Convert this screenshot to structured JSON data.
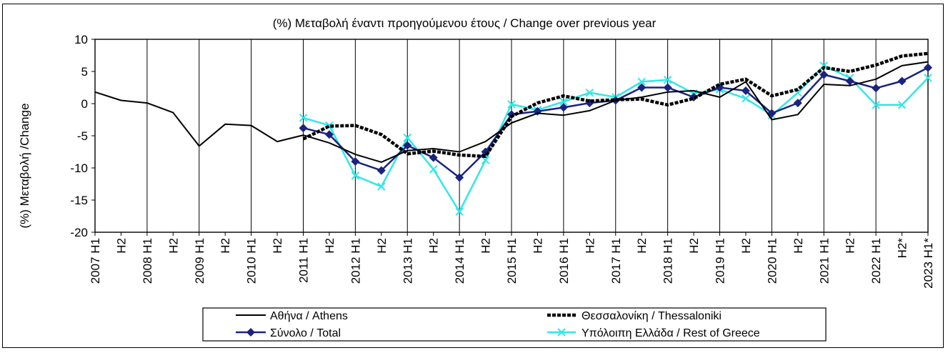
{
  "chart_data": {
    "type": "line",
    "title": "(%) Μεταβολή έναντι προηγούμενου έτους / Change over previous year",
    "xlabel": "",
    "ylabel": "(%) Μεταβολή /Change",
    "ylim": [
      -20,
      10
    ],
    "yticks": [
      10,
      5,
      0,
      -5,
      -10,
      -15,
      -20
    ],
    "grid": "vertical",
    "legend_position": "bottom",
    "categories": [
      "2007 H1",
      "H2",
      "2008 H1",
      "H2",
      "2009 H1",
      "H2",
      "2010 H1",
      "H2",
      "2011 H1",
      "H2",
      "2012 H1",
      "H2",
      "2013 H1",
      "H2",
      "2014 H1",
      "H2",
      "2015 H1",
      "H2",
      "2016 H1",
      "H2",
      "2017 H1",
      "H2",
      "2018 H1",
      "H2",
      "2019 H1",
      "H2",
      "2020 H1",
      "H2",
      "2021 H1",
      "H2",
      "2022 H1",
      "H2*",
      "2023 H1*"
    ],
    "series": [
      {
        "name": "Αθήνα / Athens",
        "color": "#000000",
        "style": "solid",
        "values": [
          1.8,
          0.5,
          0.1,
          -1.4,
          -6.6,
          -3.2,
          -3.4,
          -5.9,
          -4.9,
          -6.1,
          -7.9,
          -9.1,
          -7.3,
          -7.0,
          -7.5,
          -5.9,
          -3.0,
          -1.5,
          -1.8,
          -1.1,
          0.5,
          1.0,
          1.8,
          2.0,
          1.0,
          3.4,
          -2.5,
          -1.7,
          3.0,
          2.8,
          3.8,
          5.9,
          6.5
        ]
      },
      {
        "name": "Θεσσαλονίκη / Thessaloniki",
        "color": "#000000",
        "style": "dashed",
        "values": [
          null,
          null,
          null,
          null,
          null,
          null,
          null,
          null,
          -5.5,
          -3.5,
          -3.4,
          -4.8,
          -7.8,
          -7.4,
          -8.0,
          -8.2,
          -2.0,
          0.1,
          1.2,
          0.4,
          0.6,
          0.7,
          -0.2,
          0.8,
          3.0,
          3.8,
          1.2,
          2.2,
          5.6,
          5.0,
          6.0,
          7.4,
          7.8
        ]
      },
      {
        "name": "Σύνολο / Total",
        "color": "#1a237e",
        "style": "marker-diamond",
        "values": [
          null,
          null,
          null,
          null,
          null,
          null,
          null,
          null,
          -3.8,
          -4.8,
          -9.0,
          -10.4,
          -6.5,
          -8.4,
          -11.5,
          -7.5,
          -1.7,
          -1.2,
          -0.6,
          0.1,
          0.5,
          2.5,
          2.5,
          1.0,
          2.5,
          2.0,
          -1.5,
          0.1,
          4.5,
          3.5,
          2.4,
          3.5,
          5.6
        ]
      },
      {
        "name": "Υπόλοιπη Ελλάδα / Rest of Greece",
        "color": "#33e6e6",
        "style": "marker-x",
        "values": [
          null,
          null,
          null,
          null,
          null,
          null,
          null,
          null,
          -2.2,
          -3.4,
          -11.2,
          -12.9,
          -5.3,
          -10.2,
          -16.8,
          -8.8,
          -0.1,
          -1.0,
          0.3,
          1.7,
          1.0,
          3.4,
          3.7,
          1.6,
          2.2,
          0.8,
          -1.8,
          1.7,
          5.9,
          4.0,
          -0.2,
          -0.2,
          4.0
        ]
      }
    ]
  }
}
